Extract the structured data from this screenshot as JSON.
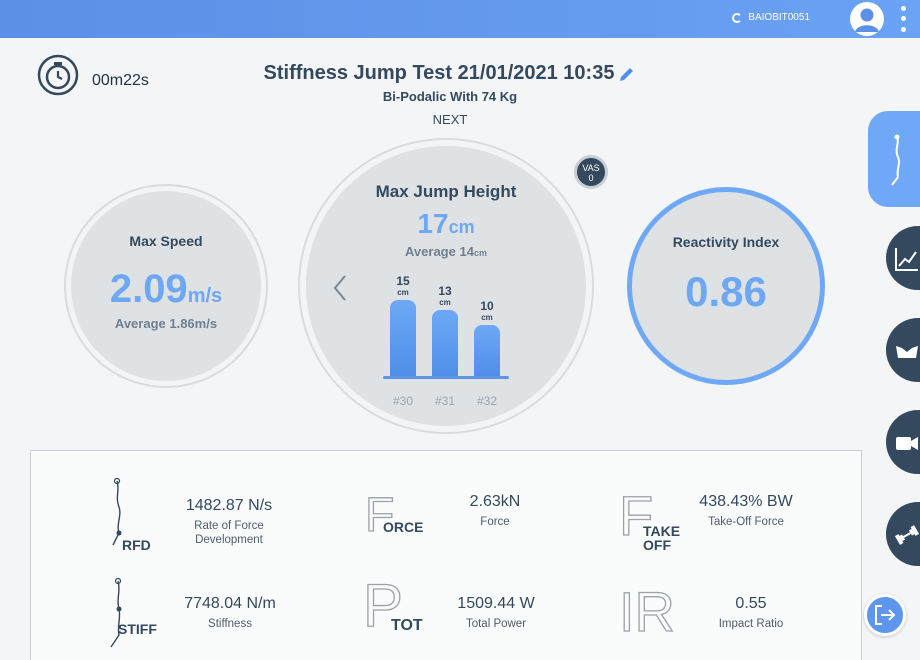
{
  "header": {
    "device_name": "BAIOBIT0051",
    "icons": [
      "loading-spinner-icon",
      "user-avatar-icon",
      "more-vertical-icon"
    ]
  },
  "timer": {
    "elapsed": "00m22s"
  },
  "test": {
    "title": "Stiffness Jump Test 21/01/2021 10:35",
    "subtitle": "Bi-Podalic With 74 Kg",
    "next_label": "NEXT"
  },
  "max_speed": {
    "label": "Max Speed",
    "value": "2.09",
    "unit": "m/s",
    "average": "Average 1.86m/s"
  },
  "max_jump": {
    "label": "Max Jump Height",
    "value": "17",
    "unit": "cm",
    "average_text": "Average 14",
    "average_unit": "cm",
    "vas_label": "VAS",
    "vas_value": "0"
  },
  "reactivity": {
    "label": "Reactivity Index",
    "value": "0.86"
  },
  "chart_data": {
    "type": "bar",
    "categories": [
      "#30",
      "#31",
      "#32"
    ],
    "values": [
      15,
      13,
      10
    ],
    "value_labels": [
      "15",
      "13",
      "10"
    ],
    "unit": "cm",
    "ylim": [
      0,
      17
    ]
  },
  "metrics": {
    "rfd": {
      "glyph": "RFD",
      "value": "1482.87 N/s",
      "label_line1": "Rate of Force",
      "label_line2": "Development"
    },
    "force": {
      "glyph_big": "F",
      "glyph_small": "ORCE",
      "value": "2.63kN",
      "label": "Force"
    },
    "takeoff": {
      "glyph_big": "F",
      "glyph_small1": "TAKE",
      "glyph_small2": "OFF",
      "value": "438.43% BW",
      "label": "Take-Off Force"
    },
    "stiff": {
      "glyph": "STIFF",
      "value": "7748.04 N/m",
      "label": "Stiffness"
    },
    "power": {
      "glyph_big": "P",
      "glyph_small": "TOT",
      "value": "1509.44 W",
      "label": "Total Power"
    },
    "ir": {
      "glyph_big": "IR",
      "value": "0.55",
      "label": "Impact Ratio"
    }
  },
  "side_tabs": [
    "jumper-icon",
    "line-chart-icon",
    "shoes-icon",
    "video-camera-icon",
    "dumbbell-icon"
  ],
  "colors": {
    "accent": "#6ea8f6",
    "header": "#5c8fe6",
    "navy": "#34495e"
  }
}
